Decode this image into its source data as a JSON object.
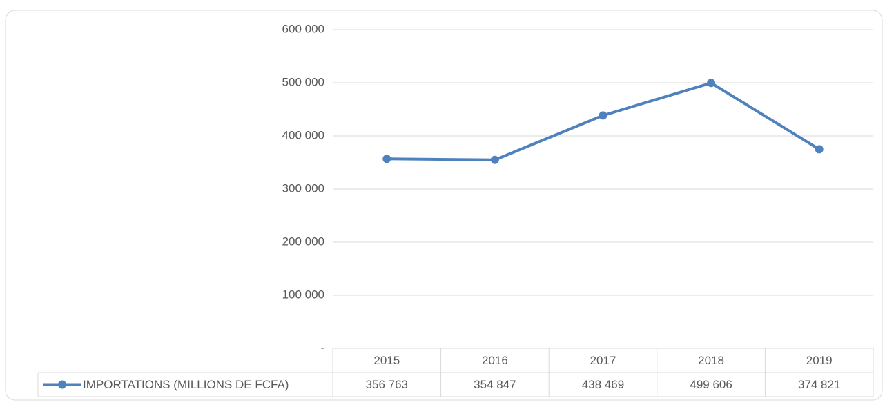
{
  "chart_data": {
    "type": "line",
    "categories": [
      "2015",
      "2016",
      "2017",
      "2018",
      "2019"
    ],
    "series": [
      {
        "name": "IMPORTATIONS (MILLIONS DE FCFA)",
        "color": "#4f81bd",
        "values": [
          356763,
          354847,
          438469,
          499606,
          374821
        ],
        "value_labels": [
          "356 763",
          "354 847",
          "438 469",
          "499 606",
          "374 821"
        ]
      }
    ],
    "ylim": [
      0,
      600000
    ],
    "yticks": [
      {
        "value": 0,
        "label": "-"
      },
      {
        "value": 100000,
        "label": "100 000"
      },
      {
        "value": 200000,
        "label": "200 000"
      },
      {
        "value": 300000,
        "label": "300 000"
      },
      {
        "value": 400000,
        "label": "400 000"
      },
      {
        "value": 500000,
        "label": "500 000"
      },
      {
        "value": 600000,
        "label": "600 000"
      }
    ],
    "grid": true
  }
}
